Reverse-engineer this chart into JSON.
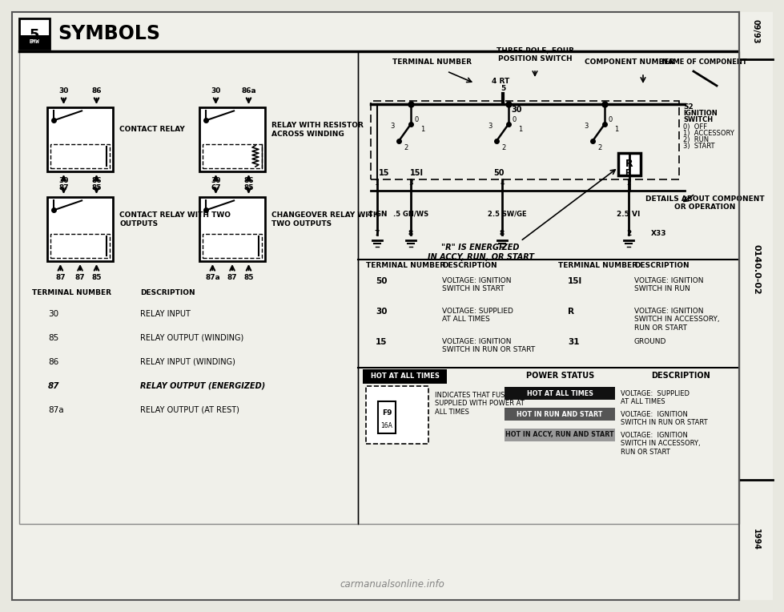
{
  "title": "SYMBOLS",
  "bg_color": "#e8e8e0",
  "page_color": "#f0f0ea",
  "side_labels": [
    "09/93",
    "0140.0-02",
    "1994"
  ],
  "left_panel": {
    "relay_diagrams": [
      {
        "label": "CONTACT RELAY",
        "terminals_top": [
          "30",
          "86"
        ],
        "terminals_bot": [
          "87",
          "85"
        ],
        "has_resistor": false,
        "extra_bot": false,
        "changeover": false
      },
      {
        "label": "RELAY WITH RESISTOR\nACROSS WINDING",
        "terminals_top": [
          "30",
          "86a"
        ],
        "terminals_bot": [
          "67",
          "85"
        ],
        "has_resistor": true,
        "extra_bot": false,
        "changeover": false
      },
      {
        "label": "CONTACT RELAY WITH TWO\nOUTPUTS",
        "terminals_top": [
          "30",
          "86"
        ],
        "terminals_bot": [
          "87",
          "87",
          "85"
        ],
        "has_resistor": false,
        "extra_bot": true,
        "changeover": false
      },
      {
        "label": "CHANGEOVER RELAY WITH\nTWO OUTPUTS",
        "terminals_top": [
          "30",
          "86"
        ],
        "terminals_bot": [
          "87a",
          "87",
          "85"
        ],
        "has_resistor": false,
        "extra_bot": true,
        "changeover": true
      }
    ],
    "terminal_table": {
      "rows": [
        [
          "30",
          "RELAY INPUT"
        ],
        [
          "85",
          "RELAY OUTPUT (WINDING)"
        ],
        [
          "86",
          "RELAY INPUT (WINDING)"
        ],
        [
          "87",
          "RELAY OUTPUT (ENERGIZED)"
        ],
        [
          "87a",
          "RELAY OUTPUT (AT REST)"
        ]
      ]
    }
  },
  "right_panel": {
    "terminal_table": {
      "rows": [
        [
          "50",
          "VOLTAGE: IGNITION\nSWITCH IN START",
          "15l",
          "VOLTAGE: IGNITION\nSWITCH IN RUN"
        ],
        [
          "30",
          "VOLTAGE: SUPPLIED\nAT ALL TIMES",
          "R",
          "VOLTAGE: IGNITION\nSWITCH IN ACCESSORY,\nRUN OR START"
        ],
        [
          "15",
          "VOLTAGE: IGNITION\nSWITCH IN RUN OR START",
          "31",
          "GROUND"
        ]
      ]
    },
    "power_status": {
      "fuse_info": "INDICATES THAT FUSE 9 IS\nSUPPLIED WITH POWER AT\nALL TIMES",
      "fuse_labels": [
        "F9",
        "16A"
      ],
      "status_boxes": [
        {
          "text": "HOT AT ALL TIMES",
          "color": "#111111",
          "text_color": "#ffffff"
        },
        {
          "text": "HOT IN RUN AND START",
          "color": "#555555",
          "text_color": "#ffffff"
        },
        {
          "text": "HOT IN ACCY, RUN AND START",
          "color": "#999999",
          "text_color": "#111111"
        }
      ],
      "descriptions": [
        "VOLTAGE:  SUPPLIED\nAT ALL TIMES",
        "VOLTAGE:  IGNITION\nSWITCH IN RUN OR START",
        "VOLTAGE:  IGNITION\nSWITCH IN ACCESSORY,\nRUN OR START"
      ]
    }
  }
}
